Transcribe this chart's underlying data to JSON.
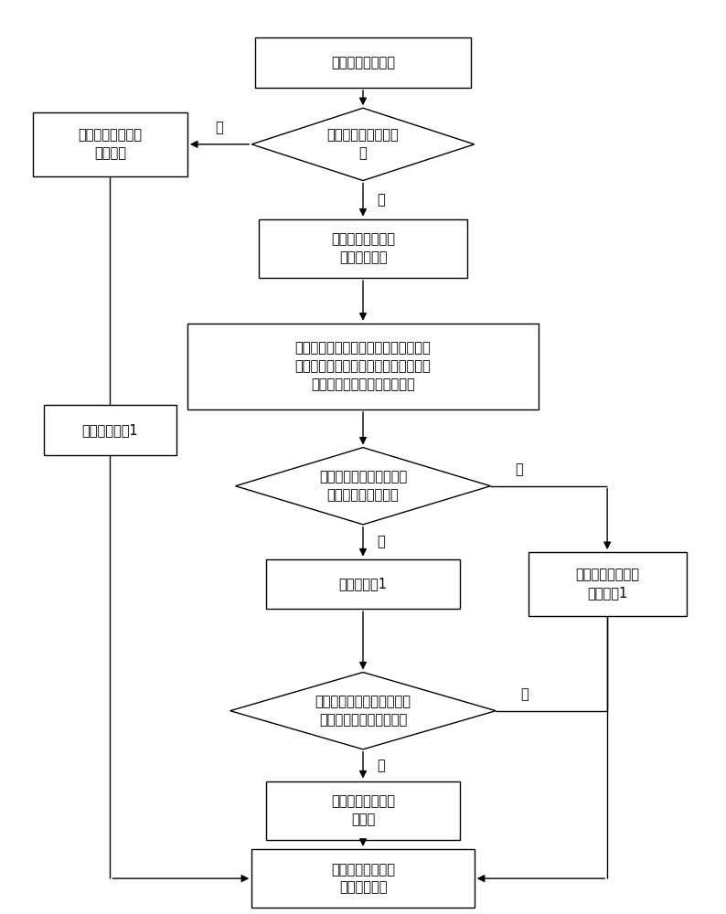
{
  "fig_width": 7.94,
  "fig_height": 10.0,
  "bg_color": "#ffffff",
  "nodes": {
    "start": {
      "text": "获取新的告警信息"
    },
    "diamond1": {
      "text": "是否是第一次折叠计\n算"
    },
    "box_new": {
      "text": "在数据列表中新建\n一条信息"
    },
    "box_find": {
      "text": "在数据列表中找到\n同类告警信息"
    },
    "box_compare": {
      "text": "将获取的告警信息的告警发生时间与同\n类告警信息的折叠结束时间的间隔时间\n之差与最低折叠间隔时间对比"
    },
    "diamond2": {
      "text": "判断间隔时间之差是否小\n于最低折叠间隔时间"
    },
    "box_add1": {
      "text": "折叠次数加1"
    },
    "box_reset_l": {
      "text": "折叠次数改为1"
    },
    "box_reset_r": {
      "text": "将告警信息的折叠\n次数改为1"
    },
    "diamond3": {
      "text": "判断同类告警信息的折叠次\n数是否大于最少折叠次数"
    },
    "box_change": {
      "text": "改变折叠次数和折\n叠类型"
    },
    "box_send": {
      "text": "将告警信息发送到\n实时告警窗口"
    }
  },
  "labels": {
    "yes": "是",
    "no": "否"
  }
}
